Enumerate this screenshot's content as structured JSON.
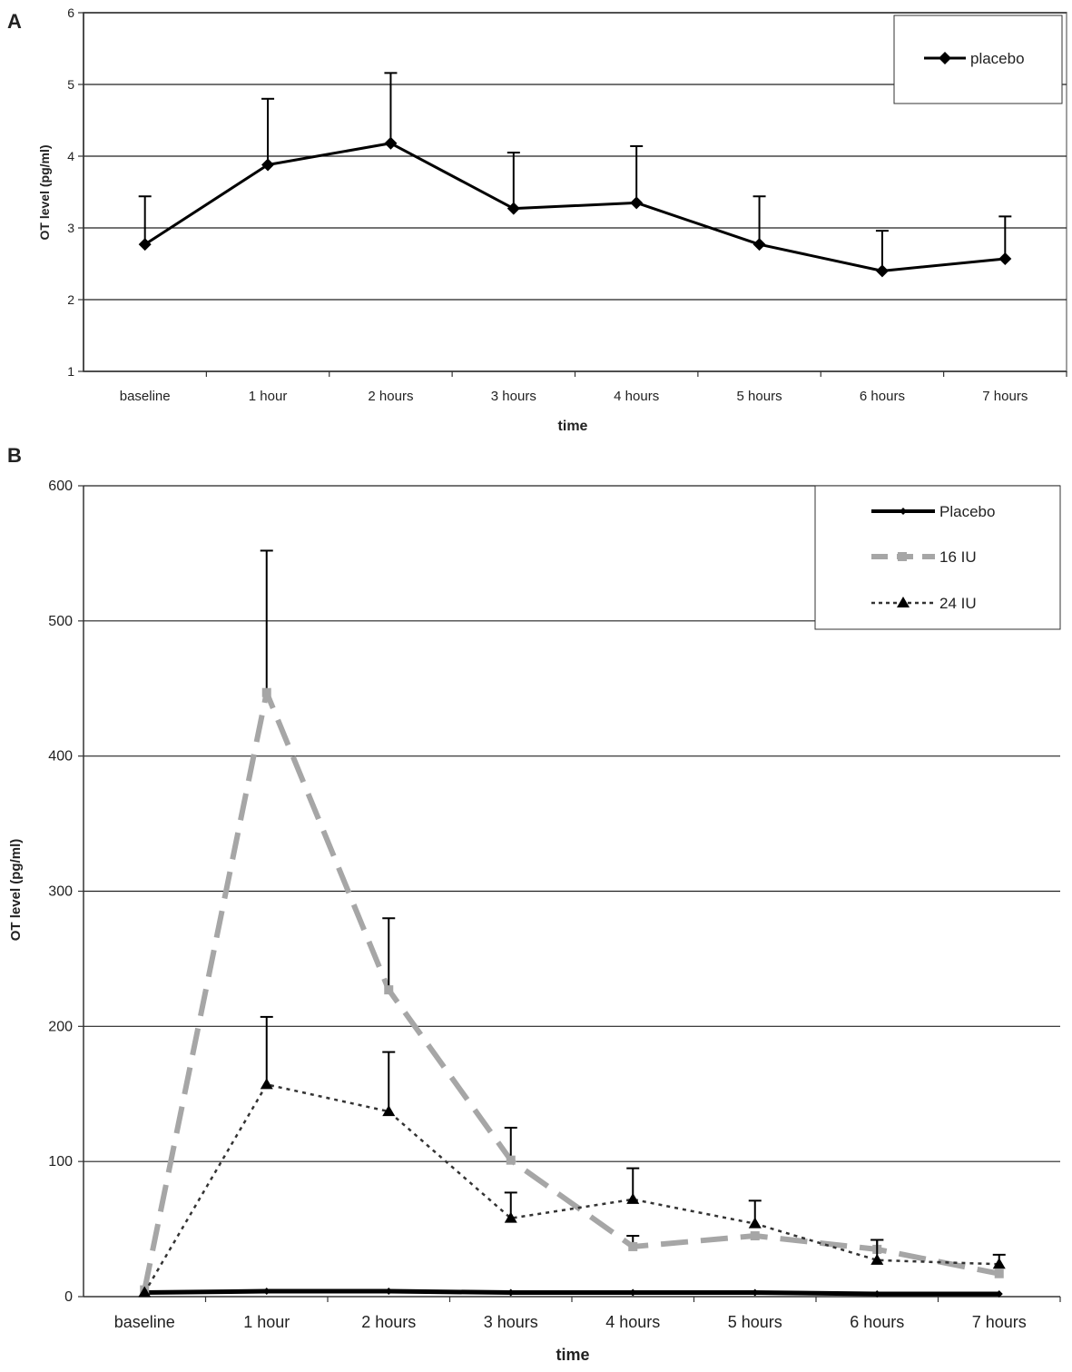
{
  "chart_data": [
    {
      "panel": "A",
      "type": "line",
      "title": "",
      "xlabel": "time",
      "ylabel": "OT level (pg/ml)",
      "ylim": [
        1,
        6
      ],
      "yticks": [
        "1",
        "2",
        "3",
        "4",
        "5",
        "6"
      ],
      "categories": [
        "baseline",
        "1 hour",
        "2 hours",
        "3 hours",
        "4 hours",
        "5 hours",
        "6 hours",
        "7 hours"
      ],
      "series": [
        {
          "name": "placebo",
          "values": [
            2.77,
            3.88,
            4.18,
            3.27,
            3.35,
            2.77,
            2.4,
            2.57
          ],
          "errors": [
            0.67,
            0.92,
            0.98,
            0.78,
            0.79,
            0.67,
            0.56,
            0.59
          ],
          "color": "#000000",
          "style": "solid",
          "marker": "diamond"
        }
      ],
      "legend": "top-right",
      "grid": true
    },
    {
      "panel": "B",
      "type": "line",
      "title": "",
      "xlabel": "time",
      "ylabel": "OT level (pg/ml)",
      "ylim": [
        0,
        600
      ],
      "yticks": [
        "0",
        "100",
        "200",
        "300",
        "400",
        "500",
        "600"
      ],
      "categories": [
        "baseline",
        "1 hour",
        "2 hours",
        "3 hours",
        "4 hours",
        "5 hours",
        "6 hours",
        "7 hours"
      ],
      "series": [
        {
          "name": "Placebo",
          "values": [
            3,
            4,
            4,
            3,
            3,
            3,
            2,
            2
          ],
          "errors": [],
          "color": "#000000",
          "style": "solid",
          "marker": "diamond"
        },
        {
          "name": "16 IU",
          "values": [
            5,
            447,
            227,
            101,
            37,
            45,
            35,
            17
          ],
          "errors": [
            0,
            105,
            53,
            24,
            8,
            0,
            7,
            0
          ],
          "color": "#a6a6a6",
          "style": "dashed",
          "marker": "square"
        },
        {
          "name": "24 IU",
          "values": [
            3,
            157,
            137,
            58,
            72,
            54,
            27,
            24
          ],
          "errors": [
            0,
            50,
            44,
            19,
            23,
            17,
            15,
            7
          ],
          "color": "#333333",
          "style": "dotted",
          "marker": "triangle"
        }
      ],
      "legend": "top-right",
      "grid": true
    }
  ]
}
